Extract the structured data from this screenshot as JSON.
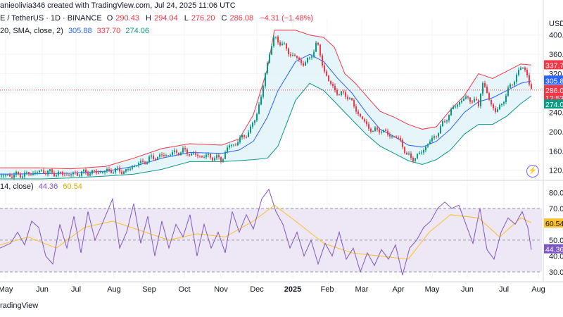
{
  "header": {
    "line1_prefix": "anieolivia346 created with TradingView.com, Jul 24, 2025 11:06 UTC",
    "line2_symbol": "E / TetherUS · 1D · BINANCE",
    "o_label": "O",
    "o_value": "290.43",
    "h_label": "H",
    "h_value": "294.04",
    "l_label": "L",
    "l_value": "276.20",
    "c_label": "C",
    "c_value": "286.08",
    "change": "−4.31 (−1.48%)",
    "bb_label": "20, SMA, close, 2)",
    "bb_mid": "305.88",
    "bb_upper": "337.70",
    "bb_lower": "274.06",
    "rsi_label": "14, close)",
    "rsi_value": "44.36",
    "rsi_ma_value": "60.54"
  },
  "currency": "USD",
  "footer": "radingView",
  "colors": {
    "up": "#089981",
    "down": "#f23645",
    "bb_upper": "#f23645",
    "bb_lower": "#089981",
    "bb_mid": "#2962ff",
    "bb_fill": "#e0f3f8",
    "rsi": "#7e57c2",
    "rsi_ma": "#fbc02d",
    "rsi_band": "#ede7f6"
  },
  "chart_data": [
    {
      "type": "candlestick",
      "title": "E / TetherUS · 1D · BINANCE",
      "x_labels": [
        "May",
        "Jun",
        "Jul",
        "Aug",
        "Sep",
        "Oct",
        "Nov",
        "Dec",
        "2025",
        "Feb",
        "Mar",
        "Apr",
        "May",
        "Jun",
        "Jul",
        "Aug"
      ],
      "y_ticks": [
        "120.00",
        "160.00",
        "200.00",
        "240.00",
        "280.00",
        "320.00",
        "360.00",
        "400.00"
      ],
      "ylim": [
        105,
        420
      ],
      "price_labels": {
        "upper": "337.70",
        "mid": "305.88",
        "close": "286.08",
        "countdown": "12:53",
        "lower": "274.06"
      },
      "close_series": [
        [
          0,
          108
        ],
        [
          20,
          110
        ],
        [
          40,
          112
        ],
        [
          60,
          118
        ],
        [
          80,
          113
        ],
        [
          100,
          111
        ],
        [
          120,
          115
        ],
        [
          140,
          116
        ],
        [
          160,
          120
        ],
        [
          180,
          118
        ],
        [
          190,
          130
        ],
        [
          200,
          135
        ],
        [
          215,
          145
        ],
        [
          230,
          150
        ],
        [
          245,
          155
        ],
        [
          260,
          160
        ],
        [
          280,
          150
        ],
        [
          300,
          148
        ],
        [
          315,
          142
        ],
        [
          325,
          170
        ],
        [
          335,
          175
        ],
        [
          345,
          190
        ],
        [
          355,
          200
        ],
        [
          365,
          240
        ],
        [
          372,
          275
        ],
        [
          378,
          330
        ],
        [
          384,
          370
        ],
        [
          390,
          395
        ],
        [
          398,
          385
        ],
        [
          405,
          375
        ],
        [
          412,
          360
        ],
        [
          420,
          355
        ],
        [
          430,
          340
        ],
        [
          440,
          350
        ],
        [
          450,
          385
        ],
        [
          460,
          330
        ],
        [
          468,
          300
        ],
        [
          475,
          290
        ],
        [
          482,
          275
        ],
        [
          490,
          280
        ],
        [
          500,
          260
        ],
        [
          510,
          235
        ],
        [
          520,
          215
        ],
        [
          530,
          200
        ],
        [
          540,
          205
        ],
        [
          550,
          195
        ],
        [
          560,
          190
        ],
        [
          570,
          180
        ],
        [
          578,
          150
        ],
        [
          585,
          145
        ],
        [
          595,
          150
        ],
        [
          605,
          170
        ],
        [
          615,
          185
        ],
        [
          625,
          205
        ],
        [
          635,
          230
        ],
        [
          645,
          250
        ],
        [
          655,
          265
        ],
        [
          665,
          270
        ],
        [
          675,
          262
        ],
        [
          680,
          255
        ],
        [
          685,
          305
        ],
        [
          690,
          285
        ],
        [
          697,
          260
        ],
        [
          705,
          240
        ],
        [
          712,
          255
        ],
        [
          720,
          280
        ],
        [
          728,
          300
        ],
        [
          735,
          320
        ],
        [
          742,
          335
        ],
        [
          748,
          325
        ],
        [
          752,
          300
        ],
        [
          755,
          286
        ]
      ],
      "bb": {
        "upper": [
          [
            0,
            125
          ],
          [
            60,
            125
          ],
          [
            100,
            123
          ],
          [
            150,
            128
          ],
          [
            190,
            145
          ],
          [
            230,
            165
          ],
          [
            270,
            175
          ],
          [
            315,
            172
          ],
          [
            340,
            185
          ],
          [
            360,
            235
          ],
          [
            380,
            330
          ],
          [
            390,
            410
          ],
          [
            420,
            410
          ],
          [
            440,
            400
          ],
          [
            460,
            395
          ],
          [
            475,
            375
          ],
          [
            490,
            320
          ],
          [
            505,
            300
          ],
          [
            520,
            275
          ],
          [
            540,
            242
          ],
          [
            560,
            230
          ],
          [
            580,
            215
          ],
          [
            600,
            205
          ],
          [
            620,
            210
          ],
          [
            640,
            245
          ],
          [
            660,
            275
          ],
          [
            680,
            320
          ],
          [
            700,
            310
          ],
          [
            720,
            325
          ],
          [
            740,
            340
          ],
          [
            755,
            338
          ]
        ],
        "mid": [
          [
            0,
            112
          ],
          [
            60,
            113
          ],
          [
            100,
            114
          ],
          [
            150,
            118
          ],
          [
            190,
            128
          ],
          [
            230,
            145
          ],
          [
            270,
            157
          ],
          [
            315,
            155
          ],
          [
            340,
            162
          ],
          [
            360,
            180
          ],
          [
            380,
            230
          ],
          [
            395,
            285
          ],
          [
            420,
            345
          ],
          [
            440,
            360
          ],
          [
            460,
            345
          ],
          [
            480,
            310
          ],
          [
            500,
            280
          ],
          [
            520,
            240
          ],
          [
            540,
            205
          ],
          [
            560,
            190
          ],
          [
            580,
            172
          ],
          [
            600,
            168
          ],
          [
            620,
            180
          ],
          [
            640,
            205
          ],
          [
            660,
            240
          ],
          [
            680,
            262
          ],
          [
            700,
            270
          ],
          [
            720,
            285
          ],
          [
            740,
            300
          ],
          [
            755,
            305
          ]
        ],
        "lower": [
          [
            0,
            102
          ],
          [
            60,
            102
          ],
          [
            100,
            104
          ],
          [
            150,
            108
          ],
          [
            190,
            112
          ],
          [
            230,
            122
          ],
          [
            270,
            138
          ],
          [
            315,
            138
          ],
          [
            340,
            140
          ],
          [
            360,
            142
          ],
          [
            380,
            145
          ],
          [
            395,
            170
          ],
          [
            420,
            265
          ],
          [
            440,
            300
          ],
          [
            460,
            285
          ],
          [
            480,
            255
          ],
          [
            500,
            225
          ],
          [
            520,
            195
          ],
          [
            540,
            170
          ],
          [
            560,
            155
          ],
          [
            580,
            140
          ],
          [
            600,
            132
          ],
          [
            620,
            142
          ],
          [
            640,
            162
          ],
          [
            660,
            195
          ],
          [
            680,
            215
          ],
          [
            700,
            215
          ],
          [
            720,
            232
          ],
          [
            740,
            258
          ],
          [
            755,
            274
          ]
        ]
      }
    },
    {
      "type": "line",
      "title": "RSI (14, close)",
      "y_ticks": [
        "30.00",
        "40.00",
        "50.00",
        "60.00",
        "70.00",
        "80.00"
      ],
      "ylim": [
        26,
        85
      ],
      "band": [
        30,
        70
      ],
      "price_labels": {
        "rsi_ma": "60.54",
        "rsi": "44.36"
      },
      "series": [
        {
          "name": "RSI",
          "values": [
            [
              0,
              45
            ],
            [
              15,
              48
            ],
            [
              25,
              55
            ],
            [
              35,
              47
            ],
            [
              45,
              62
            ],
            [
              55,
              58
            ],
            [
              65,
              40
            ],
            [
              75,
              35
            ],
            [
              85,
              60
            ],
            [
              95,
              45
            ],
            [
              105,
              65
            ],
            [
              115,
              42
            ],
            [
              125,
              68
            ],
            [
              135,
              50
            ],
            [
              145,
              60
            ],
            [
              160,
              76
            ],
            [
              170,
              45
            ],
            [
              180,
              55
            ],
            [
              190,
              73
            ],
            [
              200,
              48
            ],
            [
              210,
              65
            ],
            [
              220,
              40
            ],
            [
              230,
              62
            ],
            [
              240,
              45
            ],
            [
              250,
              60
            ],
            [
              260,
              52
            ],
            [
              270,
              66
            ],
            [
              280,
              40
            ],
            [
              290,
              60
            ],
            [
              300,
              45
            ],
            [
              310,
              55
            ],
            [
              320,
              42
            ],
            [
              330,
              68
            ],
            [
              340,
              55
            ],
            [
              350,
              66
            ],
            [
              360,
              57
            ],
            [
              372,
              76
            ],
            [
              382,
              82
            ],
            [
              392,
              68
            ],
            [
              402,
              60
            ],
            [
              412,
              45
            ],
            [
              422,
              55
            ],
            [
              432,
              40
            ],
            [
              442,
              50
            ],
            [
              452,
              35
            ],
            [
              462,
              48
            ],
            [
              472,
              40
            ],
            [
              482,
              55
            ],
            [
              492,
              38
            ],
            [
              502,
              45
            ],
            [
              512,
              30
            ],
            [
              522,
              42
            ],
            [
              532,
              34
            ],
            [
              542,
              44
            ],
            [
              552,
              38
            ],
            [
              562,
              47
            ],
            [
              572,
              28
            ],
            [
              582,
              45
            ],
            [
              592,
              50
            ],
            [
              602,
              58
            ],
            [
              612,
              62
            ],
            [
              622,
              70
            ],
            [
              632,
              74
            ],
            [
              642,
              70
            ],
            [
              652,
              72
            ],
            [
              662,
              60
            ],
            [
              672,
              48
            ],
            [
              682,
              70
            ],
            [
              692,
              44
            ],
            [
              702,
              38
            ],
            [
              712,
              55
            ],
            [
              722,
              64
            ],
            [
              732,
              60
            ],
            [
              742,
              68
            ],
            [
              750,
              58
            ],
            [
              755,
              44
            ]
          ]
        },
        {
          "name": "RSI MA",
          "values": [
            [
              0,
              47
            ],
            [
              40,
              52
            ],
            [
              80,
              45
            ],
            [
              120,
              58
            ],
            [
              160,
              62
            ],
            [
              200,
              56
            ],
            [
              240,
              50
            ],
            [
              280,
              54
            ],
            [
              320,
              52
            ],
            [
              360,
              62
            ],
            [
              390,
              72
            ],
            [
              420,
              62
            ],
            [
              460,
              48
            ],
            [
              500,
              42
            ],
            [
              540,
              40
            ],
            [
              580,
              38
            ],
            [
              610,
              55
            ],
            [
              640,
              66
            ],
            [
              680,
              64
            ],
            [
              710,
              52
            ],
            [
              740,
              64
            ],
            [
              755,
              61
            ]
          ]
        }
      ]
    }
  ]
}
